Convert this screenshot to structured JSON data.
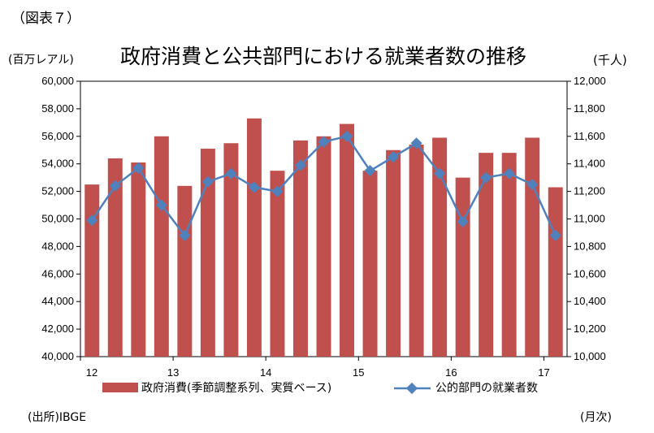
{
  "figure_label": "（図表７）",
  "chart_data": {
    "type": "bar",
    "title": "政府消費と公共部門における就業者数の推移",
    "left_unit": "(百万レアル)",
    "right_unit": "(千人)",
    "source": "(出所)IBGE",
    "period_unit": "(月次)",
    "ylim": [
      40000,
      60000
    ],
    "y2lim": [
      10000,
      12000
    ],
    "yticks": [
      "40,000",
      "42,000",
      "44,000",
      "46,000",
      "48,000",
      "50,000",
      "52,000",
      "54,000",
      "56,000",
      "58,000",
      "60,000"
    ],
    "y2ticks": [
      "10,000",
      "10,200",
      "10,400",
      "10,600",
      "10,800",
      "11,000",
      "11,200",
      "11,400",
      "11,600",
      "11,800",
      "12,000"
    ],
    "xticks": [
      "12",
      "13",
      "14",
      "15",
      "16",
      "17"
    ],
    "colors": {
      "bar": "#c0504d",
      "line": "#4f81bd"
    },
    "series": [
      {
        "name": "政府消費(季節調整系列、実質ベース)",
        "type": "bar",
        "axis": "left",
        "values": [
          52500,
          54400,
          54100,
          56000,
          52400,
          55100,
          55500,
          57300,
          53500,
          55700,
          56000,
          56900,
          53500,
          55000,
          55400,
          55900,
          53000,
          54800,
          54800,
          55900,
          52300
        ]
      },
      {
        "name": "公的部門の就業者数",
        "type": "line",
        "axis": "right",
        "values": [
          10990,
          11240,
          11370,
          11100,
          10880,
          11270,
          11330,
          11230,
          11200,
          11390,
          11560,
          11600,
          11350,
          11450,
          11550,
          11330,
          10980,
          11300,
          11330,
          11250,
          10880
        ]
      }
    ]
  }
}
